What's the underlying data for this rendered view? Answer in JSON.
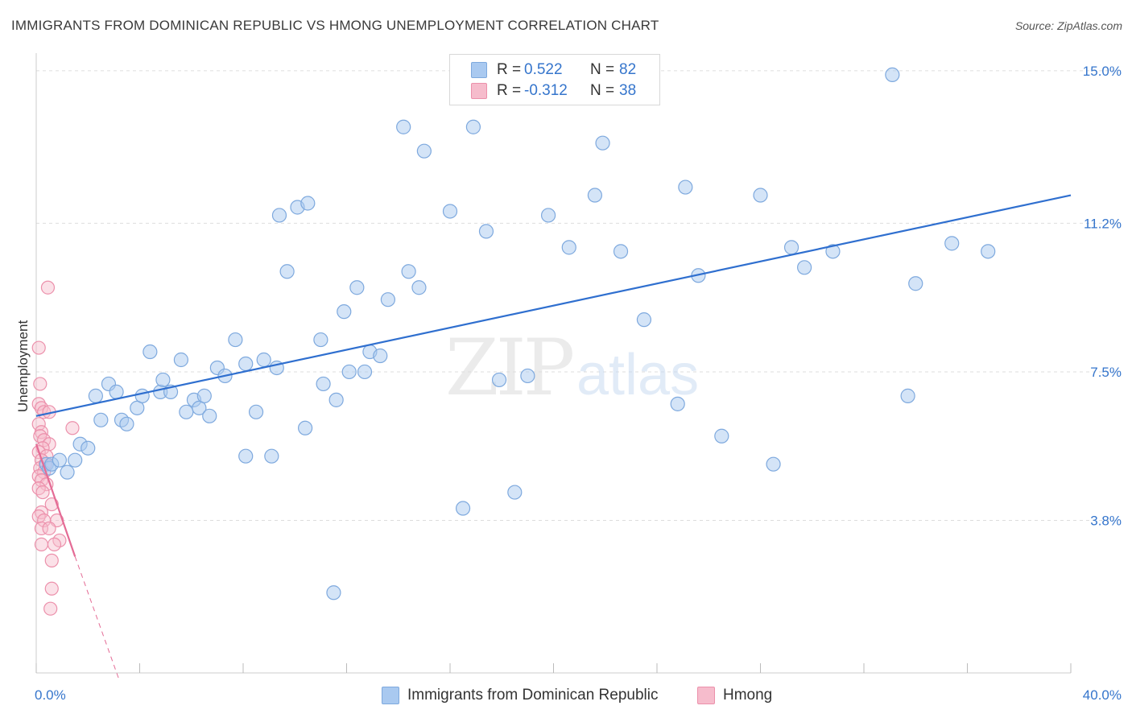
{
  "header": {
    "title": "IMMIGRANTS FROM DOMINICAN REPUBLIC VS HMONG UNEMPLOYMENT CORRELATION CHART",
    "source": "Source: ZipAtlas.com"
  },
  "watermark": {
    "zip": "ZIP",
    "atlas": "atlas"
  },
  "legend": {
    "rows": [
      {
        "r_label": "R =",
        "r_value": "0.522",
        "n_label": "N =",
        "n_value": "82"
      },
      {
        "r_label": "R =",
        "r_value": "-0.312",
        "n_label": "N =",
        "n_value": "38"
      }
    ]
  },
  "colors": {
    "blue_fill": "#a9c9f0",
    "blue_stroke": "#7ea9de",
    "blue_line": "#2f6fcf",
    "pink_fill": "#f6bccc",
    "pink_stroke": "#ec90ab",
    "pink_line": "#e46b95",
    "grid": "#dddddd",
    "tick_text": "#3575cc"
  },
  "chart_data": {
    "type": "scatter",
    "title": "IMMIGRANTS FROM DOMINICAN REPUBLIC VS HMONG UNEMPLOYMENT CORRELATION CHART",
    "xlabel": "",
    "ylabel": "Unemployment",
    "xlim": [
      0,
      40
    ],
    "ylim": [
      0,
      15.6
    ],
    "x_ticks": [
      "0.0%",
      "40.0%"
    ],
    "y_ticks": [
      {
        "value": 3.8,
        "label": "3.8%"
      },
      {
        "value": 7.5,
        "label": "7.5%"
      },
      {
        "value": 11.2,
        "label": "11.2%"
      },
      {
        "value": 15.0,
        "label": "15.0%"
      }
    ],
    "grid": true,
    "legend_position": "bottom-center",
    "series": [
      {
        "name": "Immigrants from Dominican Republic",
        "color": "#a9c9f0",
        "r": 0.522,
        "n": 82,
        "trend": {
          "x": [
            0,
            40
          ],
          "y": [
            6.4,
            11.9
          ]
        },
        "points": [
          [
            0.4,
            5.2
          ],
          [
            0.5,
            5.1
          ],
          [
            0.6,
            5.2
          ],
          [
            0.9,
            5.3
          ],
          [
            1.2,
            5.0
          ],
          [
            1.7,
            5.7
          ],
          [
            2.0,
            5.6
          ],
          [
            2.3,
            6.9
          ],
          [
            2.5,
            6.3
          ],
          [
            2.8,
            7.2
          ],
          [
            3.1,
            7.0
          ],
          [
            3.3,
            6.3
          ],
          [
            3.5,
            6.2
          ],
          [
            3.9,
            6.6
          ],
          [
            4.1,
            6.9
          ],
          [
            4.4,
            8.0
          ],
          [
            4.8,
            7.0
          ],
          [
            4.9,
            7.3
          ],
          [
            5.2,
            7.0
          ],
          [
            5.6,
            7.8
          ],
          [
            5.8,
            6.5
          ],
          [
            6.1,
            6.8
          ],
          [
            6.3,
            6.6
          ],
          [
            6.5,
            6.9
          ],
          [
            6.7,
            6.4
          ],
          [
            7.0,
            7.6
          ],
          [
            7.3,
            7.4
          ],
          [
            7.7,
            8.3
          ],
          [
            8.1,
            7.7
          ],
          [
            8.1,
            5.4
          ],
          [
            8.5,
            6.5
          ],
          [
            8.8,
            7.8
          ],
          [
            9.1,
            5.4
          ],
          [
            9.3,
            7.6
          ],
          [
            9.4,
            11.4
          ],
          [
            9.7,
            10.0
          ],
          [
            10.1,
            11.6
          ],
          [
            10.5,
            11.7
          ],
          [
            10.4,
            6.1
          ],
          [
            11.0,
            8.3
          ],
          [
            11.1,
            7.2
          ],
          [
            11.6,
            6.8
          ],
          [
            11.9,
            9.0
          ],
          [
            12.1,
            7.5
          ],
          [
            12.4,
            9.6
          ],
          [
            12.7,
            7.5
          ],
          [
            12.9,
            8.0
          ],
          [
            13.3,
            7.9
          ],
          [
            13.6,
            9.3
          ],
          [
            14.2,
            13.6
          ],
          [
            14.4,
            10.0
          ],
          [
            14.8,
            9.6
          ],
          [
            15.0,
            13.0
          ],
          [
            16.0,
            11.5
          ],
          [
            16.5,
            4.1
          ],
          [
            16.9,
            13.6
          ],
          [
            17.4,
            11.0
          ],
          [
            17.9,
            7.3
          ],
          [
            18.5,
            4.5
          ],
          [
            19.0,
            7.4
          ],
          [
            19.8,
            11.4
          ],
          [
            20.6,
            10.6
          ],
          [
            21.6,
            11.9
          ],
          [
            21.9,
            13.2
          ],
          [
            22.6,
            10.5
          ],
          [
            23.5,
            8.8
          ],
          [
            24.8,
            6.7
          ],
          [
            25.1,
            12.1
          ],
          [
            25.6,
            9.9
          ],
          [
            26.5,
            5.9
          ],
          [
            28.0,
            11.9
          ],
          [
            28.5,
            5.2
          ],
          [
            29.2,
            10.6
          ],
          [
            29.7,
            10.1
          ],
          [
            30.8,
            10.5
          ],
          [
            11.5,
            2.0
          ],
          [
            33.1,
            14.9
          ],
          [
            33.7,
            6.9
          ],
          [
            34.0,
            9.7
          ],
          [
            35.4,
            10.7
          ],
          [
            36.8,
            10.5
          ],
          [
            1.5,
            5.3
          ]
        ]
      },
      {
        "name": "Hmong",
        "color": "#f6bccc",
        "r": -0.312,
        "n": 38,
        "trend": {
          "x": [
            0,
            1.5
          ],
          "y": [
            5.7,
            2.9
          ]
        },
        "trend_dashed": {
          "x": [
            1.5,
            3.2
          ],
          "y": [
            2.9,
            -0.3
          ]
        },
        "points": [
          [
            0.1,
            8.1
          ],
          [
            0.15,
            7.2
          ],
          [
            0.1,
            6.7
          ],
          [
            0.2,
            6.6
          ],
          [
            0.3,
            6.5
          ],
          [
            0.5,
            6.5
          ],
          [
            0.1,
            6.2
          ],
          [
            0.2,
            6.0
          ],
          [
            0.15,
            5.9
          ],
          [
            0.3,
            5.8
          ],
          [
            0.5,
            5.7
          ],
          [
            0.25,
            5.6
          ],
          [
            0.1,
            5.5
          ],
          [
            0.4,
            5.4
          ],
          [
            0.2,
            5.3
          ],
          [
            0.35,
            5.2
          ],
          [
            0.15,
            5.1
          ],
          [
            0.3,
            5.0
          ],
          [
            0.1,
            4.9
          ],
          [
            0.2,
            4.8
          ],
          [
            0.4,
            4.7
          ],
          [
            0.1,
            4.6
          ],
          [
            0.25,
            4.5
          ],
          [
            0.6,
            4.2
          ],
          [
            0.2,
            4.0
          ],
          [
            0.1,
            3.9
          ],
          [
            0.3,
            3.8
          ],
          [
            0.8,
            3.8
          ],
          [
            0.2,
            3.6
          ],
          [
            0.5,
            3.6
          ],
          [
            0.9,
            3.3
          ],
          [
            0.2,
            3.2
          ],
          [
            0.7,
            3.2
          ],
          [
            0.6,
            2.8
          ],
          [
            0.6,
            2.1
          ],
          [
            0.55,
            1.6
          ],
          [
            0.45,
            9.6
          ],
          [
            1.4,
            6.1
          ]
        ]
      }
    ]
  },
  "bottom_legend": {
    "items": [
      {
        "label": "Immigrants from Dominican Republic"
      },
      {
        "label": "Hmong"
      }
    ]
  }
}
